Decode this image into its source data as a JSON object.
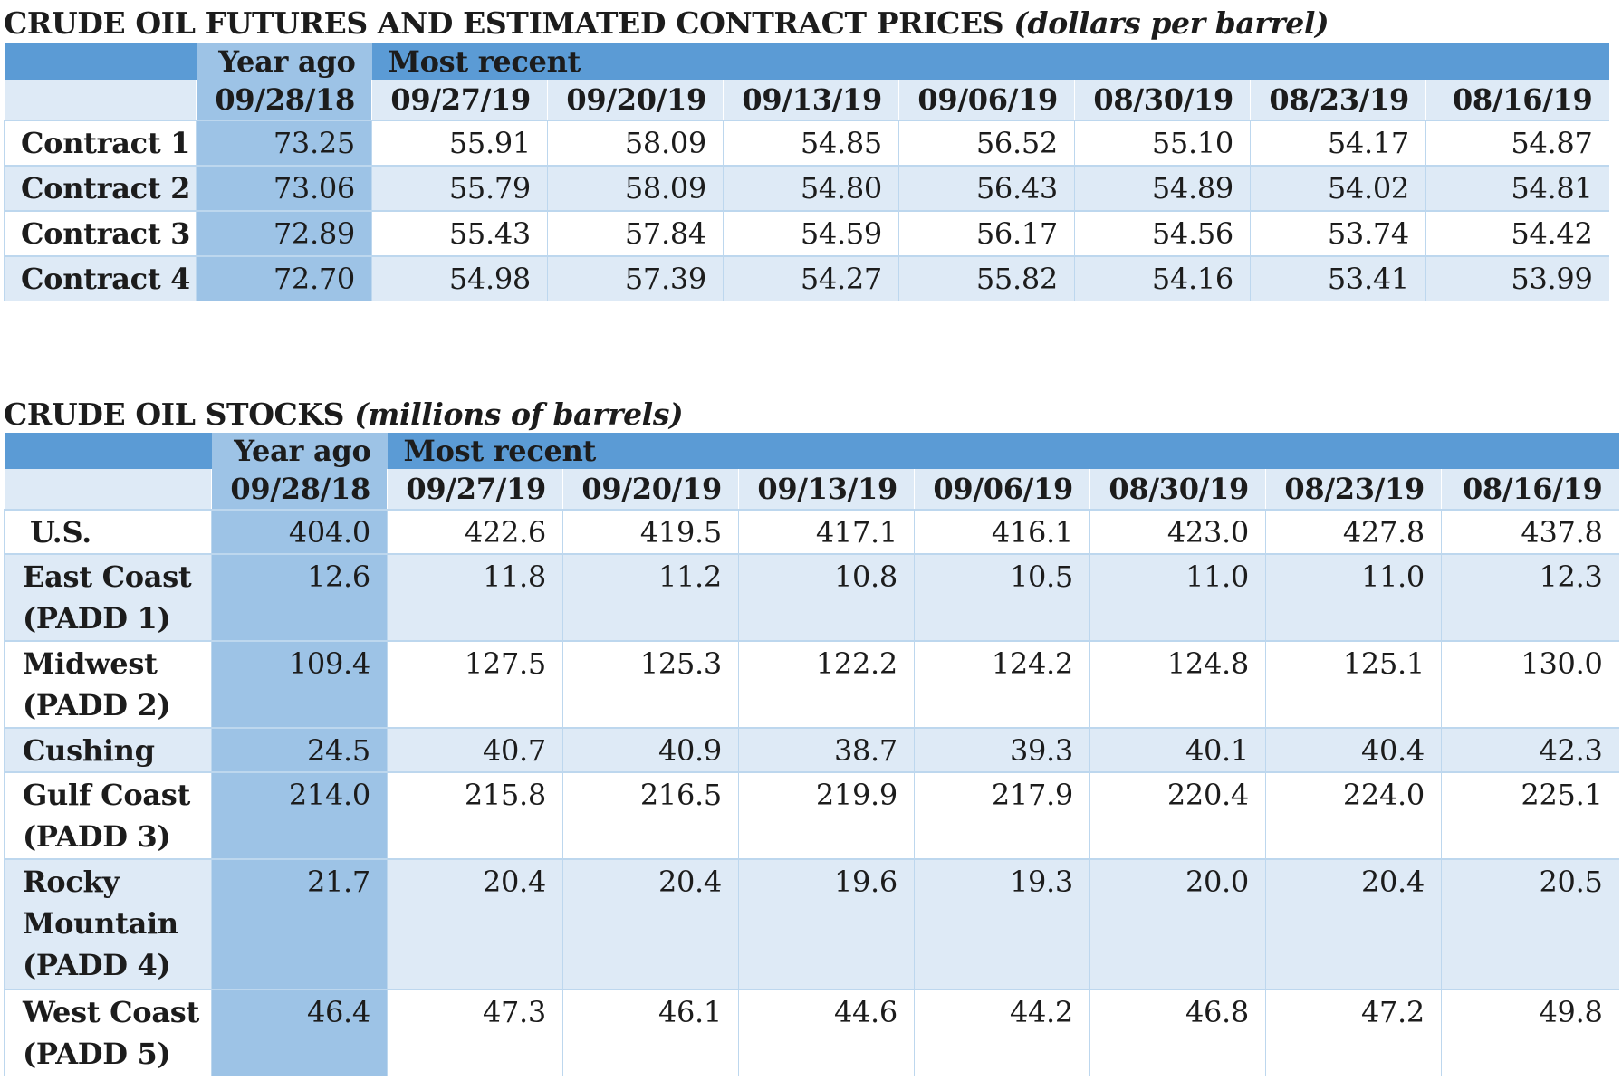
{
  "futures": {
    "title_main": "CRUDE OIL FUTURES AND ESTIMATED CONTRACT PRICES",
    "title_unit": "(dollars per barrel)",
    "year_ago_label": "Year ago",
    "most_recent_label": "Most recent",
    "dates": [
      "09/28/18",
      "09/27/19",
      "09/20/19",
      "09/13/19",
      "09/06/19",
      "08/30/19",
      "08/23/19",
      "08/16/19"
    ],
    "rows": [
      {
        "label": "Contract 1",
        "values": [
          "73.25",
          "55.91",
          "58.09",
          "54.85",
          "56.52",
          "55.10",
          "54.17",
          "54.87"
        ]
      },
      {
        "label": "Contract 2",
        "values": [
          "73.06",
          "55.79",
          "58.09",
          "54.80",
          "56.43",
          "54.89",
          "54.02",
          "54.81"
        ]
      },
      {
        "label": "Contract 3",
        "values": [
          "72.89",
          "55.43",
          "57.84",
          "54.59",
          "56.17",
          "54.56",
          "53.74",
          "54.42"
        ]
      },
      {
        "label": "Contract 4",
        "values": [
          "72.70",
          "54.98",
          "57.39",
          "54.27",
          "55.82",
          "54.16",
          "53.41",
          "53.99"
        ]
      }
    ]
  },
  "stocks": {
    "title_main": "CRUDE OIL STOCKS",
    "title_unit": "(millions of barrels)",
    "year_ago_label": "Year ago",
    "most_recent_label": "Most recent",
    "dates": [
      "09/28/18",
      "09/27/19",
      "09/20/19",
      "09/13/19",
      "09/06/19",
      "08/30/19",
      "08/23/19",
      "08/16/19"
    ],
    "rows": [
      {
        "label": "U.S.",
        "values": [
          "404.0",
          "422.6",
          "419.5",
          "417.1",
          "416.1",
          "423.0",
          "427.8",
          "437.8"
        ]
      },
      {
        "label": "East Coast (PADD 1)",
        "values": [
          "12.6",
          "11.8",
          "11.2",
          "10.8",
          "10.5",
          "11.0",
          "11.0",
          "12.3"
        ]
      },
      {
        "label": "Midwest (PADD 2)",
        "values": [
          "109.4",
          "127.5",
          "125.3",
          "122.2",
          "124.2",
          "124.8",
          "125.1",
          "130.0"
        ]
      },
      {
        "label": "Cushing",
        "values": [
          "24.5",
          "40.7",
          "40.9",
          "38.7",
          "39.3",
          "40.1",
          "40.4",
          "42.3"
        ]
      },
      {
        "label": "Gulf Coast (PADD 3)",
        "values": [
          "214.0",
          "215.8",
          "216.5",
          "219.9",
          "217.9",
          "220.4",
          "224.0",
          "225.1"
        ]
      },
      {
        "label": "Rocky Mountain (PADD 4)",
        "values": [
          "21.7",
          "20.4",
          "20.4",
          "19.6",
          "19.3",
          "20.0",
          "20.4",
          "20.5"
        ]
      },
      {
        "label": "West Coast (PADD 5)",
        "values": [
          "46.4",
          "47.3",
          "46.1",
          "44.6",
          "44.2",
          "46.8",
          "47.2",
          "49.8"
        ]
      }
    ]
  }
}
